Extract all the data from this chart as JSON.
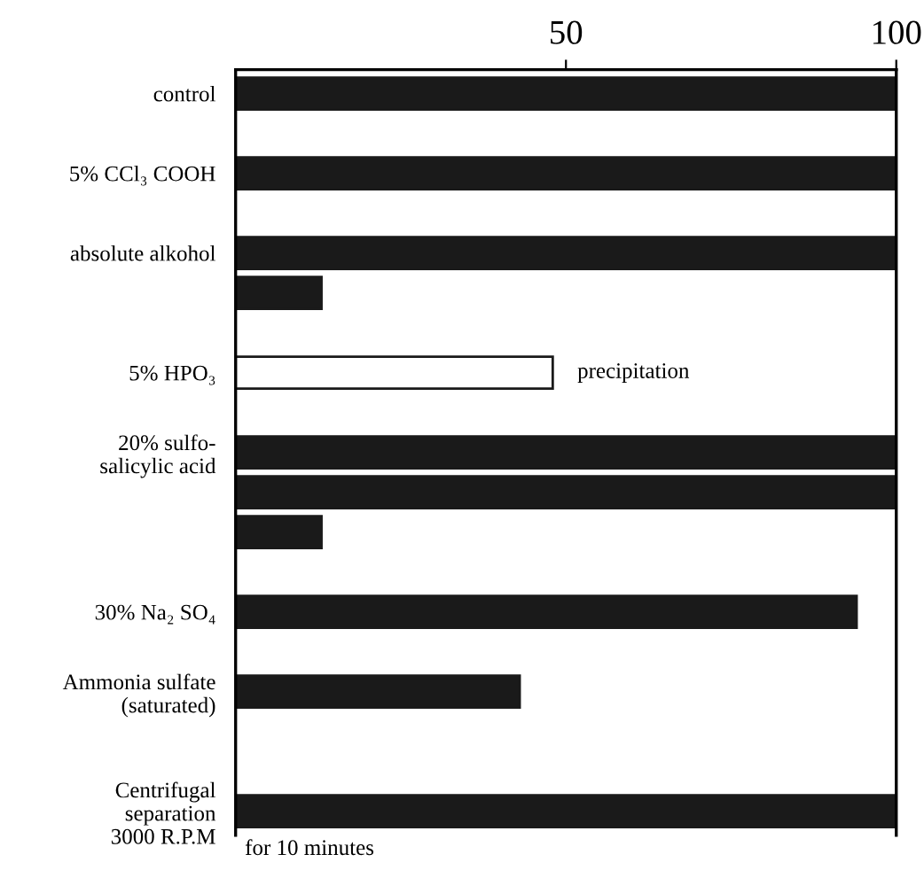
{
  "chart_data": {
    "type": "bar",
    "orientation": "horizontal",
    "categories": [
      "control",
      null,
      "5% CCl₃ COOH",
      null,
      "absolute alkohol",
      null,
      null,
      "5% HPO₃",
      null,
      "20% sulfo-\nsalicylic acid",
      null,
      null,
      null,
      "30% Na₂ SO₄",
      null,
      "Ammonia sulfate\n(saturated)",
      null,
      null,
      "Centrifugal\nseparation\n3000 R.P.M"
    ],
    "values": [
      100,
      null,
      100,
      null,
      100,
      13,
      null,
      48,
      null,
      100,
      100,
      13,
      null,
      94,
      null,
      43,
      null,
      null,
      100
    ],
    "colors": [
      "#1a1a1a",
      null,
      "#1a1a1a",
      null,
      "#1a1a1a",
      "#1a1a1a",
      null,
      "#ffffff",
      null,
      "#1a1a1a",
      "#1a1a1a",
      "#1a1a1a",
      null,
      "#1a1a1a",
      null,
      "#1a1a1a",
      null,
      null,
      "#1a1a1a"
    ],
    "xlim": [
      0,
      100
    ],
    "xticks": [
      50,
      100
    ],
    "annotations": [
      {
        "text": "precipitation",
        "x": 48,
        "y": "5% HPO₃"
      },
      "for 10 minutes"
    ],
    "grid": false,
    "legend": false
  }
}
